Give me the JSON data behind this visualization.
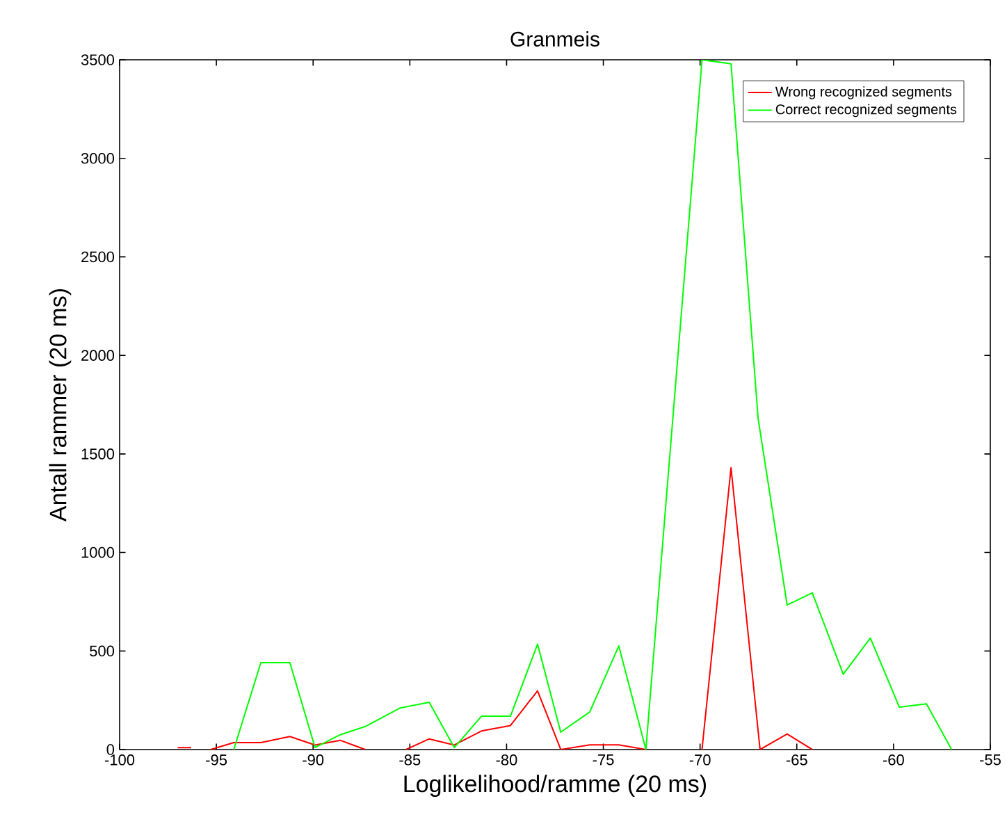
{
  "chart_data": {
    "type": "line",
    "title": "Granmeis",
    "xlabel": "Loglikelihood/ramme (20 ms)",
    "ylabel": "Antall rammer (20 ms)",
    "xlim": [
      -100,
      -55
    ],
    "xticks": [
      -100,
      -95,
      -90,
      -85,
      -80,
      -75,
      -70,
      -65,
      -60,
      -55
    ],
    "ylim": [
      0,
      3500
    ],
    "yticks": [
      0,
      500,
      1000,
      1500,
      2000,
      2500,
      3000,
      3500
    ],
    "grid": false,
    "legend": "top right",
    "marker": "none",
    "line_style": "solid",
    "series": [
      {
        "name": "Wrong recognized segments",
        "color": "#ff0000",
        "x": [
          -97.0,
          -96.3,
          -95.6,
          -95.3,
          -94.1,
          -92.7,
          -91.2,
          -89.9,
          -88.6,
          -87.3,
          -86.5,
          -85.2,
          -84.0,
          -82.7,
          -81.3,
          -79.8,
          -78.4,
          -77.2,
          -75.7,
          -74.2,
          -72.8,
          -71.3,
          -69.9,
          -68.4,
          -66.9,
          -65.5,
          -64.2
        ],
        "values": [
          10,
          10,
          null,
          0,
          35,
          35,
          66,
          23,
          47,
          0,
          null,
          0,
          54,
          23,
          94,
          122,
          298,
          0,
          24,
          24,
          0,
          null,
          0,
          1430,
          0,
          79,
          0
        ]
      },
      {
        "name": "Correct recognized segments",
        "color": "#00ff00",
        "x": [
          -94.1,
          -92.7,
          -91.2,
          -89.9,
          -88.6,
          -87.3,
          -85.5,
          -84.0,
          -82.7,
          -81.3,
          -79.8,
          -78.4,
          -77.2,
          -75.7,
          -74.2,
          -72.8,
          -69.9,
          -68.4,
          -67.0,
          -65.5,
          -64.2,
          -62.6,
          -61.2,
          -59.7,
          -58.3,
          -57.0
        ],
        "values": [
          0,
          441,
          441,
          10,
          75,
          117,
          211,
          240,
          10,
          169,
          169,
          535,
          88,
          191,
          526,
          0,
          3500,
          3480,
          1680,
          733,
          795,
          382,
          566,
          215,
          232,
          0
        ]
      }
    ]
  }
}
